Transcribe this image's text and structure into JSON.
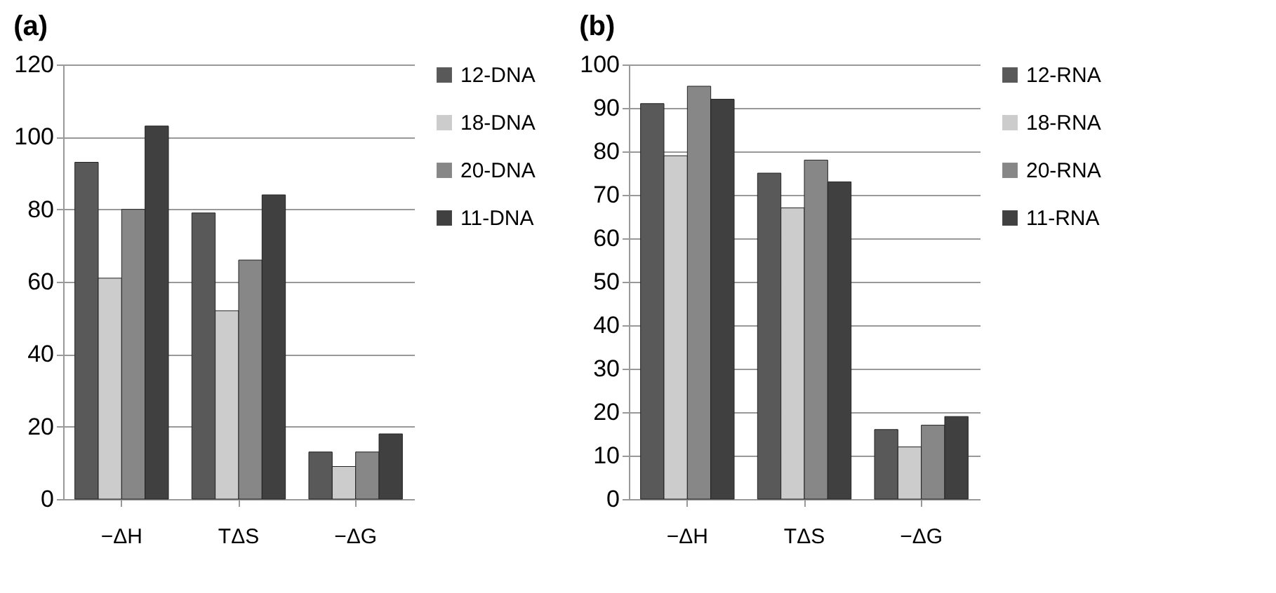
{
  "chart_data": [
    {
      "type": "bar",
      "title": "(a)",
      "categories": [
        "−ΔH",
        "TΔS",
        "−ΔG"
      ],
      "series": [
        {
          "name": "12-DNA",
          "color": "#595959",
          "values": [
            93,
            79,
            13
          ]
        },
        {
          "name": "18-DNA",
          "color": "#cccccc",
          "values": [
            61,
            52,
            9
          ]
        },
        {
          "name": "20-DNA",
          "color": "#878787",
          "values": [
            80,
            66,
            13
          ]
        },
        {
          "name": "11-DNA",
          "color": "#404040",
          "values": [
            103,
            84,
            18
          ]
        }
      ],
      "ylim": [
        0,
        120
      ],
      "yticks": [
        0,
        20,
        40,
        60,
        80,
        100,
        120
      ],
      "grid": "y",
      "legend": "right"
    },
    {
      "type": "bar",
      "title": "(b)",
      "categories": [
        "−ΔH",
        "TΔS",
        "−ΔG"
      ],
      "series": [
        {
          "name": "12-RNA",
          "color": "#595959",
          "values": [
            91,
            75,
            16
          ]
        },
        {
          "name": "18-RNA",
          "color": "#cccccc",
          "values": [
            79,
            67,
            12
          ]
        },
        {
          "name": "20-RNA",
          "color": "#878787",
          "values": [
            95,
            78,
            17
          ]
        },
        {
          "name": "11-RNA",
          "color": "#404040",
          "values": [
            92,
            73,
            19
          ]
        }
      ],
      "ylim": [
        0,
        100
      ],
      "yticks": [
        0,
        10,
        20,
        30,
        40,
        50,
        60,
        70,
        80,
        90,
        100
      ],
      "grid": "y",
      "legend": "right"
    }
  ]
}
